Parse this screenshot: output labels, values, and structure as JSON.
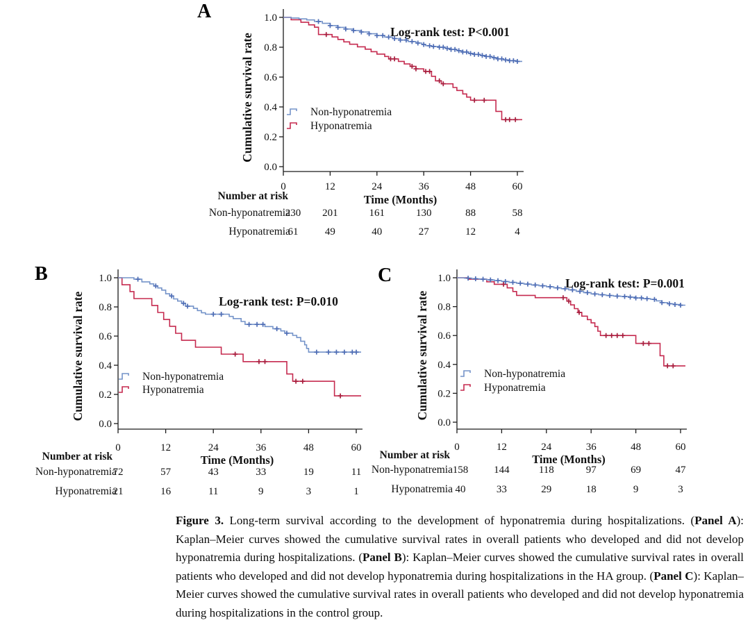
{
  "figure": {
    "caption_segments": [
      {
        "text": "Figure 3.",
        "bold": true
      },
      {
        "text": " Long-term survival according to the development of hyponatremia during hospitalizations. (",
        "bold": false
      },
      {
        "text": "Panel A",
        "bold": true
      },
      {
        "text": "): Kaplan–Meier curves showed the cumulative survival rates in overall patients who developed and did not develop hyponatremia during hospitalizations. (",
        "bold": false
      },
      {
        "text": "Panel B",
        "bold": true
      },
      {
        "text": "): Kaplan–Meier curves showed the cumulative survival rates in overall patients who developed and did not develop hyponatremia during hospitalizations in the HA group. (",
        "bold": false
      },
      {
        "text": "Panel C",
        "bold": true
      },
      {
        "text": "): Kaplan–Meier curves showed the cumulative survival rates in overall patients who developed and did not develop hyponatremia during hospitalizations in the control group.",
        "bold": false
      }
    ]
  },
  "chart_data": [
    {
      "type": "line",
      "subtype": "kaplan-meier-step",
      "panel_label": "A",
      "annotation": "Log-rank test: P<0.001",
      "xlabel": "Time (Months)",
      "ylabel": "Cumulative survival rate",
      "xticks": [
        0,
        12,
        24,
        36,
        48,
        60
      ],
      "ytick_labels": [
        "1.0",
        "0.8",
        "0.6",
        "0.4",
        "0.2",
        "0.0"
      ],
      "xlim": [
        0,
        60
      ],
      "ylim": [
        0.0,
        1.0
      ],
      "number_at_risk_label": "Number at risk",
      "legend_position": "inside-lower-left",
      "series": [
        {
          "name": "Non-hyponatremia",
          "color": "#7493C9",
          "marker_color": "#4E6DB5",
          "at_risk": [
            230,
            201,
            161,
            130,
            88,
            58
          ],
          "points": [
            [
              0,
              1.0
            ],
            [
              2,
              0.996
            ],
            [
              4,
              0.99
            ],
            [
              6,
              0.983
            ],
            [
              8,
              0.972
            ],
            [
              10,
              0.96
            ],
            [
              12,
              0.945
            ],
            [
              14,
              0.933
            ],
            [
              16,
              0.922
            ],
            [
              18,
              0.912
            ],
            [
              20,
              0.902
            ],
            [
              22,
              0.89
            ],
            [
              24,
              0.878
            ],
            [
              26,
              0.868
            ],
            [
              28,
              0.858
            ],
            [
              30,
              0.848
            ],
            [
              32,
              0.838
            ],
            [
              34,
              0.828
            ],
            [
              35.5,
              0.818
            ],
            [
              36.5,
              0.81
            ],
            [
              38,
              0.805
            ],
            [
              40,
              0.8
            ],
            [
              41.5,
              0.792
            ],
            [
              43,
              0.785
            ],
            [
              44.5,
              0.777
            ],
            [
              46,
              0.768
            ],
            [
              47.5,
              0.758
            ],
            [
              49,
              0.752
            ],
            [
              50.5,
              0.745
            ],
            [
              52,
              0.738
            ],
            [
              53.5,
              0.73
            ],
            [
              55,
              0.722
            ],
            [
              56.5,
              0.715
            ],
            [
              58,
              0.71
            ],
            [
              60,
              0.705
            ]
          ],
          "censor_marks_months": [
            9,
            12,
            14,
            16,
            18,
            20,
            22,
            24,
            25.5,
            27,
            28.5,
            30,
            31.5,
            33,
            34.5,
            36,
            37.5,
            38.5,
            40,
            41,
            42,
            43,
            44,
            45,
            46,
            47,
            48,
            49,
            50,
            51,
            52,
            53,
            54,
            55,
            56,
            57,
            58,
            59,
            60
          ]
        },
        {
          "name": "Hyponatremia",
          "color": "#C52A4F",
          "marker_color": "#A81E3E",
          "at_risk": [
            61,
            49,
            40,
            27,
            12,
            4
          ],
          "points": [
            [
              0,
              1.0
            ],
            [
              2,
              0.984
            ],
            [
              4.5,
              0.967
            ],
            [
              6.5,
              0.95
            ],
            [
              8,
              0.934
            ],
            [
              9,
              0.885
            ],
            [
              12.5,
              0.869
            ],
            [
              14,
              0.852
            ],
            [
              15.5,
              0.836
            ],
            [
              17,
              0.82
            ],
            [
              19,
              0.803
            ],
            [
              21,
              0.787
            ],
            [
              22.5,
              0.77
            ],
            [
              24,
              0.754
            ],
            [
              26,
              0.738
            ],
            [
              27,
              0.722
            ],
            [
              29.5,
              0.705
            ],
            [
              31,
              0.688
            ],
            [
              32.5,
              0.672
            ],
            [
              34,
              0.655
            ],
            [
              36,
              0.638
            ],
            [
              38,
              0.605
            ],
            [
              39,
              0.575
            ],
            [
              40.5,
              0.555
            ],
            [
              43.5,
              0.53
            ],
            [
              44.5,
              0.51
            ],
            [
              46,
              0.487
            ],
            [
              47,
              0.466
            ],
            [
              48,
              0.445
            ],
            [
              54.5,
              0.37
            ],
            [
              56,
              0.315
            ],
            [
              60,
              0.315
            ]
          ],
          "censor_marks_months": [
            11,
            27.5,
            28.5,
            33,
            34,
            36.5,
            37.5,
            40,
            41,
            49,
            51.5,
            57,
            58,
            59.5
          ]
        }
      ]
    },
    {
      "type": "line",
      "subtype": "kaplan-meier-step",
      "panel_label": "B",
      "annotation": "Log-rank test: P=0.010",
      "xlabel": "Time (Months)",
      "ylabel": "Cumulative survival rate",
      "xticks": [
        0,
        12,
        24,
        36,
        48,
        60
      ],
      "ytick_labels": [
        "1.0",
        "0.8",
        "0.6",
        "0.4",
        "0.2",
        "0.0"
      ],
      "xlim": [
        0,
        60
      ],
      "ylim": [
        0.0,
        1.0
      ],
      "number_at_risk_label": "Number at risk",
      "legend_position": "inside-lower-left",
      "series": [
        {
          "name": "Non-hyponatremia",
          "color": "#7493C9",
          "marker_color": "#4E6DB5",
          "at_risk": [
            72,
            57,
            43,
            33,
            19,
            11
          ],
          "points": [
            [
              0,
              1.0
            ],
            [
              4,
              0.99
            ],
            [
              6,
              0.972
            ],
            [
              8,
              0.958
            ],
            [
              9,
              0.944
            ],
            [
              10,
              0.93
            ],
            [
              11,
              0.915
            ],
            [
              12,
              0.89
            ],
            [
              13,
              0.875
            ],
            [
              14,
              0.855
            ],
            [
              15,
              0.84
            ],
            [
              16,
              0.825
            ],
            [
              17,
              0.805
            ],
            [
              19,
              0.79
            ],
            [
              20,
              0.775
            ],
            [
              21,
              0.76
            ],
            [
              22,
              0.75
            ],
            [
              28,
              0.735
            ],
            [
              29,
              0.72
            ],
            [
              31,
              0.7
            ],
            [
              32,
              0.68
            ],
            [
              37,
              0.665
            ],
            [
              39,
              0.65
            ],
            [
              41,
              0.635
            ],
            [
              42,
              0.62
            ],
            [
              44,
              0.605
            ],
            [
              45,
              0.59
            ],
            [
              46,
              0.565
            ],
            [
              47,
              0.54
            ],
            [
              47.5,
              0.515
            ],
            [
              48,
              0.49
            ],
            [
              60,
              0.49
            ]
          ],
          "censor_marks_months": [
            5,
            9.5,
            13.5,
            16.5,
            17.5,
            24,
            26,
            33,
            35,
            36.5,
            40,
            42.5,
            50,
            53,
            55,
            57,
            59,
            60
          ]
        },
        {
          "name": "Hyponatremia",
          "color": "#C52A4F",
          "marker_color": "#A81E3E",
          "at_risk": [
            21,
            16,
            11,
            9,
            3,
            1
          ],
          "points": [
            [
              0,
              1.0
            ],
            [
              1,
              0.952
            ],
            [
              3,
              0.905
            ],
            [
              4,
              0.857
            ],
            [
              8.5,
              0.81
            ],
            [
              10,
              0.762
            ],
            [
              11.5,
              0.714
            ],
            [
              13,
              0.667
            ],
            [
              14.5,
              0.619
            ],
            [
              16,
              0.571
            ],
            [
              19.5,
              0.524
            ],
            [
              26,
              0.476
            ],
            [
              31.5,
              0.425
            ],
            [
              42.5,
              0.34
            ],
            [
              44,
              0.29
            ],
            [
              54.5,
              0.19
            ],
            [
              60,
              0.19
            ]
          ],
          "censor_marks_months": [
            29.5,
            35.5,
            37,
            44.8,
            46.5,
            56
          ]
        }
      ]
    },
    {
      "type": "line",
      "subtype": "kaplan-meier-step",
      "panel_label": "C",
      "annotation": "Log-rank test: P=0.001",
      "xlabel": "Time (Months)",
      "ylabel": "Cumulative survival rate",
      "xticks": [
        0,
        12,
        24,
        36,
        48,
        60
      ],
      "ytick_labels": [
        "1.0",
        "0.8",
        "0.6",
        "0.4",
        "0.2",
        "0.0"
      ],
      "xlim": [
        0,
        60
      ],
      "ylim": [
        0.0,
        1.0
      ],
      "number_at_risk_label": "Number at risk",
      "legend_position": "inside-lower-left",
      "series": [
        {
          "name": "Non-hyponatremia",
          "color": "#7493C9",
          "marker_color": "#4E6DB5",
          "at_risk": [
            158,
            144,
            118,
            97,
            69,
            47
          ],
          "points": [
            [
              0,
              1.0
            ],
            [
              2,
              0.997
            ],
            [
              4,
              0.993
            ],
            [
              6,
              0.99
            ],
            [
              8,
              0.985
            ],
            [
              10,
              0.98
            ],
            [
              12,
              0.974
            ],
            [
              14,
              0.968
            ],
            [
              16,
              0.962
            ],
            [
              18,
              0.956
            ],
            [
              20,
              0.95
            ],
            [
              22,
              0.944
            ],
            [
              24,
              0.938
            ],
            [
              26,
              0.93
            ],
            [
              28,
              0.924
            ],
            [
              30,
              0.916
            ],
            [
              32,
              0.906
            ],
            [
              34,
              0.897
            ],
            [
              36,
              0.888
            ],
            [
              38,
              0.882
            ],
            [
              40,
              0.877
            ],
            [
              42,
              0.873
            ],
            [
              44,
              0.87
            ],
            [
              46,
              0.866
            ],
            [
              48,
              0.86
            ],
            [
              50,
              0.855
            ],
            [
              52,
              0.85
            ],
            [
              53.5,
              0.84
            ],
            [
              55,
              0.828
            ],
            [
              56.5,
              0.82
            ],
            [
              58,
              0.815
            ],
            [
              60,
              0.81
            ]
          ],
          "censor_marks_months": [
            3,
            5,
            7,
            9,
            11,
            13,
            15,
            17,
            19,
            21,
            23,
            25,
            27,
            29,
            31,
            33,
            35,
            37,
            39,
            41,
            43,
            45,
            46.5,
            48,
            49.5,
            51,
            53,
            55,
            57,
            58.5,
            60
          ]
        },
        {
          "name": "Hyponatremia",
          "color": "#C52A4F",
          "marker_color": "#A81E3E",
          "at_risk": [
            40,
            33,
            29,
            18,
            9,
            3
          ],
          "points": [
            [
              0,
              1.0
            ],
            [
              3,
              0.99
            ],
            [
              8,
              0.972
            ],
            [
              10,
              0.955
            ],
            [
              13.5,
              0.93
            ],
            [
              15,
              0.905
            ],
            [
              16,
              0.878
            ],
            [
              21,
              0.862
            ],
            [
              29.5,
              0.838
            ],
            [
              30.5,
              0.812
            ],
            [
              31.5,
              0.786
            ],
            [
              32.5,
              0.76
            ],
            [
              33.5,
              0.734
            ],
            [
              35,
              0.71
            ],
            [
              36,
              0.688
            ],
            [
              37,
              0.662
            ],
            [
              37.8,
              0.63
            ],
            [
              38.5,
              0.6
            ],
            [
              48,
              0.545
            ],
            [
              54.5,
              0.46
            ],
            [
              55.5,
              0.39
            ],
            [
              60,
              0.39
            ]
          ],
          "censor_marks_months": [
            12.5,
            28.5,
            30,
            32.8,
            40,
            41.5,
            43,
            44.5,
            50,
            51.5,
            56.5,
            58
          ]
        }
      ]
    }
  ]
}
